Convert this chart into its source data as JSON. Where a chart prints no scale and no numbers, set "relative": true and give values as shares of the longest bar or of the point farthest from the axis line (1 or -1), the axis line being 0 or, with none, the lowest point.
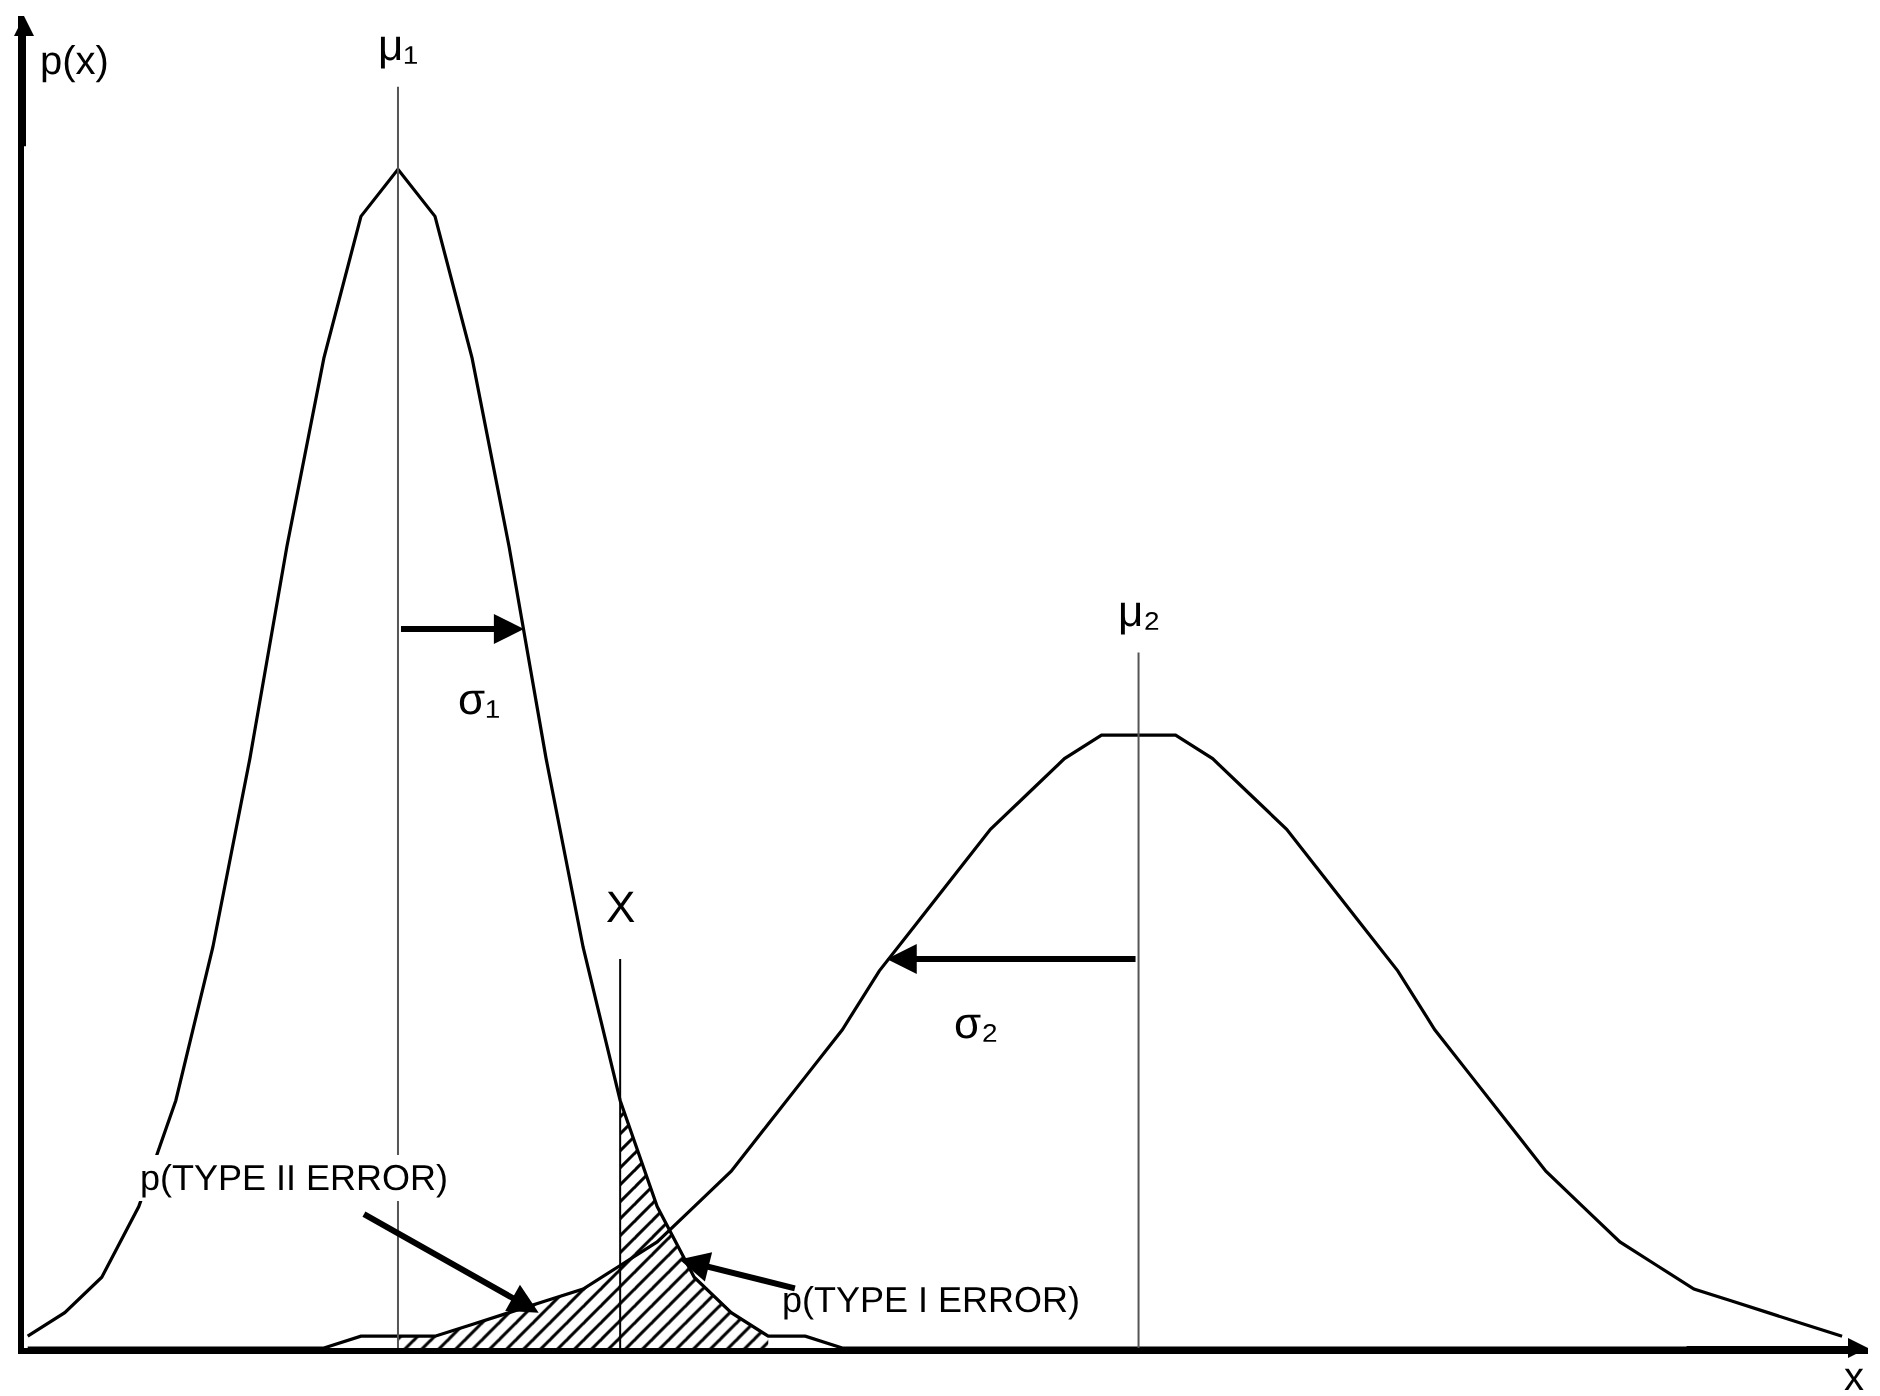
{
  "chart_data": {
    "type": "line",
    "relative": true,
    "xlabel": "x",
    "ylabel": "p(x)",
    "grid": false,
    "categories": [
      null,
      null,
      null,
      null,
      null,
      null,
      null,
      null,
      null,
      null,
      null,
      null,
      null,
      null,
      null,
      null,
      null,
      null,
      null,
      null,
      null,
      null,
      null,
      null,
      null,
      null,
      null,
      null,
      null,
      null,
      null,
      null,
      null,
      null,
      null,
      null,
      null,
      null,
      null,
      null,
      null,
      null,
      null,
      null,
      null,
      null,
      null,
      null,
      null,
      null
    ],
    "series": [
      {
        "color": "#000000",
        "values": [
          0.01,
          0.03,
          0.06,
          0.12,
          0.21,
          0.34,
          0.5,
          0.68,
          0.84,
          0.96,
          1,
          0.96,
          0.84,
          0.68,
          0.5,
          0.34,
          0.21,
          0.12,
          0.06,
          0.03,
          0.01,
          0.01,
          0,
          0,
          0,
          0,
          0,
          0,
          0,
          0,
          0,
          0,
          0,
          0,
          0,
          0,
          0,
          0,
          0,
          0,
          0,
          0,
          0,
          0,
          0,
          0,
          0,
          0,
          0,
          0
        ]
      },
      {
        "color": "#000000",
        "values": [
          0,
          0,
          0,
          0,
          0,
          0,
          0,
          0,
          0,
          0.01,
          0.01,
          0.01,
          0.02,
          0.03,
          0.04,
          0.05,
          0.07,
          0.09,
          0.12,
          0.15,
          0.19,
          0.23,
          0.27,
          0.32,
          0.36,
          0.4,
          0.44,
          0.47,
          0.5,
          0.52,
          0.52,
          0.52,
          0.5,
          0.47,
          0.44,
          0.4,
          0.36,
          0.32,
          0.27,
          0.23,
          0.19,
          0.15,
          0.12,
          0.09,
          0.07,
          0.05,
          0.04,
          0.03,
          0.02,
          0.01
        ]
      },
      {
        "type": "area",
        "color": "#000000",
        "values": [
          null,
          null,
          null,
          null,
          null,
          null,
          null,
          null,
          null,
          null,
          0.01,
          0.01,
          0.02,
          0.03,
          0.04,
          0.05,
          0.07,
          null,
          null,
          null,
          null,
          null,
          null,
          null,
          null,
          null,
          null,
          null,
          null,
          null,
          null,
          null,
          null,
          null,
          null,
          null,
          null,
          null,
          null,
          null,
          null,
          null,
          null,
          null,
          null,
          null,
          null,
          null,
          null,
          null
        ]
      },
      {
        "type": "area",
        "color": "#000000",
        "values": [
          null,
          null,
          null,
          null,
          null,
          null,
          null,
          null,
          null,
          null,
          null,
          null,
          null,
          null,
          null,
          null,
          0.21,
          0.12,
          0.06,
          0.03,
          0.01,
          null,
          null,
          null,
          null,
          null,
          null,
          null,
          null,
          null,
          null,
          null,
          null,
          null,
          null,
          null,
          null,
          null,
          null,
          null,
          null,
          null,
          null,
          null,
          null,
          null,
          null,
          null,
          null,
          null
        ]
      }
    ],
    "annotations": [
      "σ₁",
      "σ₂",
      "p(TYPE II ERROR)",
      "p(TYPE I ERROR)",
      "μ₁",
      "μ₂",
      "X"
    ]
  }
}
